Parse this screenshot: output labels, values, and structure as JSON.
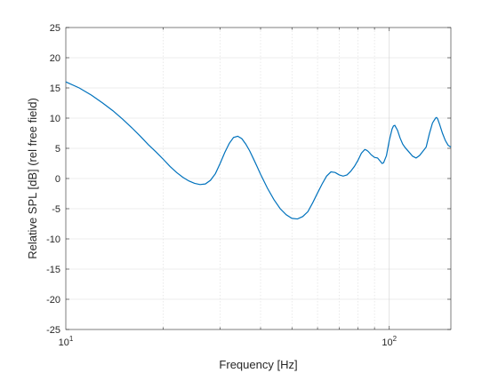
{
  "chart_data": {
    "type": "line",
    "title": "",
    "xlabel": "Frequency [Hz]",
    "ylabel": "Relative SPL [dB] (rel free field)",
    "xscale": "log",
    "xlim": [
      10,
      155
    ],
    "ylim": [
      -25,
      25
    ],
    "grid": "on",
    "legend": "none",
    "x_tick_labels": [
      {
        "base": "10",
        "exp": "1",
        "value": 10
      },
      {
        "base": "10",
        "exp": "2",
        "value": 100
      }
    ],
    "y_ticks": [
      -25,
      -20,
      -15,
      -10,
      -5,
      0,
      5,
      10,
      15,
      20,
      25
    ],
    "colors": {
      "line": "#0072BD",
      "grid": "#dcdcdc",
      "axis": "#262626"
    },
    "series": [
      {
        "x": [
          10,
          11,
          12,
          13,
          14,
          15,
          16,
          17,
          18,
          19,
          20,
          21,
          22,
          23,
          24,
          25,
          26,
          27,
          28,
          29,
          30,
          31,
          32,
          33,
          34,
          35,
          36,
          37,
          38,
          39,
          40,
          42,
          44,
          46,
          48,
          50,
          52,
          54,
          55,
          56,
          58,
          60,
          62,
          64,
          66,
          68,
          69,
          70,
          72,
          74,
          76,
          78,
          80,
          82,
          84,
          85,
          86,
          88,
          90,
          92,
          94,
          95,
          96,
          98,
          100,
          102,
          103,
          104,
          106,
          108,
          110,
          112,
          115,
          118,
          121,
          124,
          127,
          130,
          133,
          136,
          139,
          140,
          141,
          143,
          146,
          149,
          152,
          155
        ],
        "y": [
          16.0,
          15.0,
          13.8,
          12.5,
          11.2,
          9.8,
          8.4,
          7.0,
          5.6,
          4.4,
          3.2,
          2.0,
          1.0,
          0.2,
          -0.4,
          -0.8,
          -1.0,
          -0.9,
          -0.3,
          0.8,
          2.5,
          4.3,
          5.8,
          6.8,
          7.0,
          6.6,
          5.7,
          4.6,
          3.3,
          2.0,
          0.7,
          -1.6,
          -3.5,
          -5.0,
          -6.0,
          -6.6,
          -6.7,
          -6.3,
          -5.9,
          -5.5,
          -4.0,
          -2.4,
          -0.9,
          0.4,
          1.1,
          1.0,
          0.8,
          0.6,
          0.4,
          0.6,
          1.2,
          2.0,
          3.0,
          4.2,
          4.8,
          4.7,
          4.5,
          3.9,
          3.5,
          3.4,
          2.8,
          2.5,
          2.6,
          3.8,
          6.3,
          8.2,
          8.7,
          8.8,
          8.0,
          6.7,
          5.7,
          5.1,
          4.4,
          3.7,
          3.4,
          3.8,
          4.5,
          5.2,
          7.4,
          9.2,
          10.0,
          10.1,
          9.9,
          9.0,
          7.5,
          6.3,
          5.5,
          5.2
        ]
      }
    ]
  }
}
